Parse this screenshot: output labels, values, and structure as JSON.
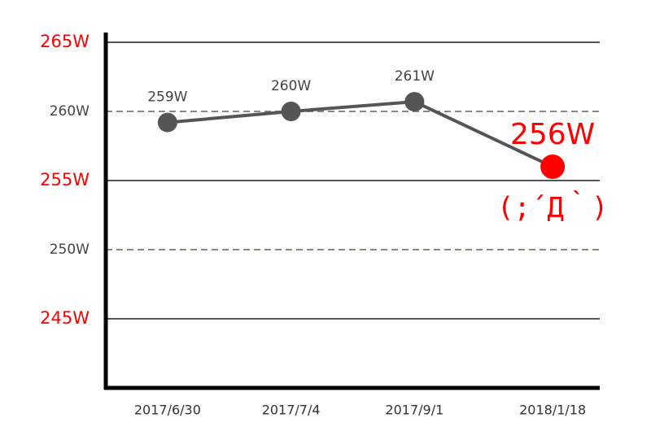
{
  "chart_data": {
    "type": "line",
    "categories": [
      "2017/6/30",
      "2017/7/4",
      "2017/9/1",
      "2018/1/18"
    ],
    "series": [
      {
        "color": "#555555",
        "values": [
          259.2,
          260.0,
          260.7,
          256.0
        ],
        "value_labels": [
          "259W",
          "260W",
          "261W",
          "256W"
        ]
      }
    ],
    "highlight_color": "#ff0000",
    "annotation": "(;´Д｀)",
    "ylim": [
      240,
      265.5
    ],
    "yticks": [
      {
        "value": 245,
        "label": "245W"
      },
      {
        "value": 250,
        "label": "250W"
      },
      {
        "value": 255,
        "label": "255W"
      },
      {
        "value": 260,
        "label": "260W"
      },
      {
        "value": 265,
        "label": "265W"
      }
    ],
    "grid": true
  }
}
